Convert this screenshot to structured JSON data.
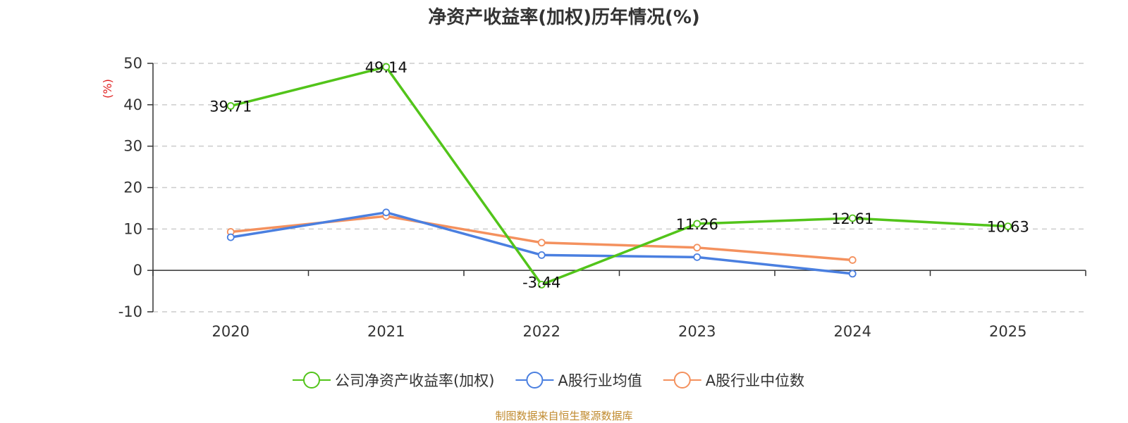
{
  "title": "净资产收益率(加权)历年情况(%)",
  "source": "制图数据来自恒生聚源数据库",
  "colors": {
    "company": "#52c41a",
    "industry_avg": "#4a7fe0",
    "industry_median": "#f4915e",
    "axis": "#333333",
    "grid": "#cccccc",
    "ylabel": "#e02020"
  },
  "chart_data": {
    "type": "line",
    "title": "净资产收益率(加权)历年情况(%)",
    "xlabel": "",
    "ylabel": "(%)",
    "categories": [
      "2020",
      "2021",
      "2022",
      "2023",
      "2024",
      "2025"
    ],
    "ylim": [
      -10,
      50
    ],
    "yticks": [
      50,
      40,
      30,
      20,
      10,
      0,
      -10
    ],
    "grid": true,
    "legend_position": "bottom",
    "series": [
      {
        "name": "公司净资产收益率(加权)",
        "values": [
          39.71,
          49.14,
          -3.44,
          11.26,
          12.61,
          10.63
        ],
        "labels": [
          "39.71",
          "49.14",
          "-3.44",
          "11.26",
          "12.61",
          "10.63"
        ]
      },
      {
        "name": "A股行业均值",
        "values": [
          8.0,
          14.0,
          3.7,
          3.2,
          -0.8,
          null
        ]
      },
      {
        "name": "A股行业中位数",
        "values": [
          9.3,
          13.1,
          6.7,
          5.5,
          2.5,
          null
        ]
      }
    ]
  }
}
